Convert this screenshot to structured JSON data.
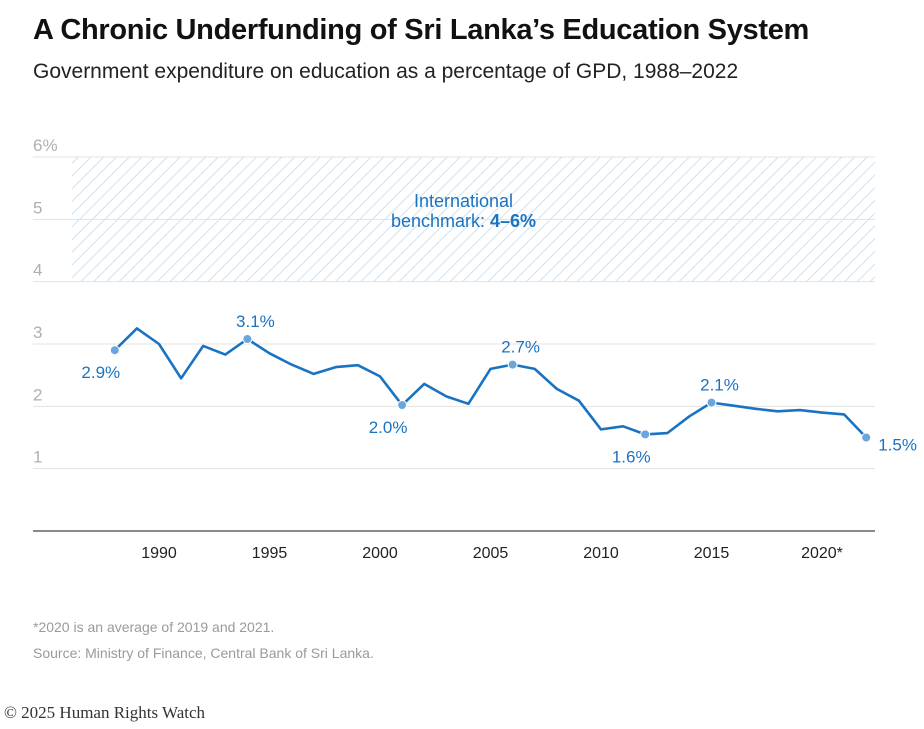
{
  "title": "A Chronic Underfunding of Sri Lanka’s Education System",
  "subtitle": "Government expenditure on education as a percentage of GPD, 1988–2022",
  "chart_data": {
    "type": "line",
    "title": "A Chronic Underfunding of Sri Lanka’s Education System",
    "subtitle": "Government expenditure on education as a percentage of GPD, 1988–2022",
    "xlabel": "",
    "ylabel": "",
    "xlim": [
      1985,
      2024
    ],
    "ylim": [
      0,
      6
    ],
    "y_ticks": [
      {
        "value": 1,
        "label": "1"
      },
      {
        "value": 2,
        "label": "2"
      },
      {
        "value": 3,
        "label": "3"
      },
      {
        "value": 4,
        "label": "4"
      },
      {
        "value": 5,
        "label": "5"
      },
      {
        "value": 6,
        "label": "6%"
      }
    ],
    "x_ticks": [
      {
        "value": 1990,
        "label": "1990"
      },
      {
        "value": 1995,
        "label": "1995"
      },
      {
        "value": 2000,
        "label": "2000"
      },
      {
        "value": 2005,
        "label": "2005"
      },
      {
        "value": 2010,
        "label": "2010"
      },
      {
        "value": 2015,
        "label": "2015"
      },
      {
        "value": 2020,
        "label": "2020*"
      }
    ],
    "grid": true,
    "benchmark": {
      "low": 4,
      "high": 6,
      "label_line1": "International",
      "label_line2": "benchmark: ",
      "label_bold": "4–6%"
    },
    "series": [
      {
        "name": "Education expenditure (% of GDP)",
        "color": "#1a73c2",
        "x": [
          1988,
          1989,
          1990,
          1991,
          1992,
          1993,
          1994,
          1995,
          1996,
          1997,
          1998,
          1999,
          2000,
          2001,
          2002,
          2003,
          2004,
          2005,
          2006,
          2007,
          2008,
          2009,
          2010,
          2011,
          2012,
          2013,
          2014,
          2015,
          2016,
          2017,
          2018,
          2019,
          2020,
          2021,
          2022
        ],
        "values": [
          2.9,
          3.25,
          3.0,
          2.45,
          2.97,
          2.83,
          3.08,
          2.85,
          2.67,
          2.52,
          2.63,
          2.66,
          2.48,
          2.02,
          2.36,
          2.16,
          2.04,
          2.6,
          2.67,
          2.6,
          2.28,
          2.09,
          1.63,
          1.68,
          1.55,
          1.57,
          1.84,
          2.06,
          2.01,
          1.96,
          1.92,
          1.94,
          1.9,
          1.87,
          1.5
        ]
      }
    ],
    "annotations": [
      {
        "x": 1988,
        "y": 2.9,
        "label": "2.9%",
        "pos": "below"
      },
      {
        "x": 1994,
        "y": 3.08,
        "label": "3.1%",
        "pos": "above"
      },
      {
        "x": 2001,
        "y": 2.02,
        "label": "2.0%",
        "pos": "below"
      },
      {
        "x": 2006,
        "y": 2.67,
        "label": "2.7%",
        "pos": "above"
      },
      {
        "x": 2012,
        "y": 1.55,
        "label": "1.6%",
        "pos": "below"
      },
      {
        "x": 2015,
        "y": 2.06,
        "label": "2.1%",
        "pos": "above"
      },
      {
        "x": 2022,
        "y": 1.5,
        "label": "1.5%",
        "pos": "right"
      }
    ]
  },
  "footnote": "*2020 is an average of 2019 and 2021.",
  "source": "Source: Ministry of Finance, Central Bank of Sri Lanka.",
  "copyright": "© 2025 Human Rights Watch"
}
